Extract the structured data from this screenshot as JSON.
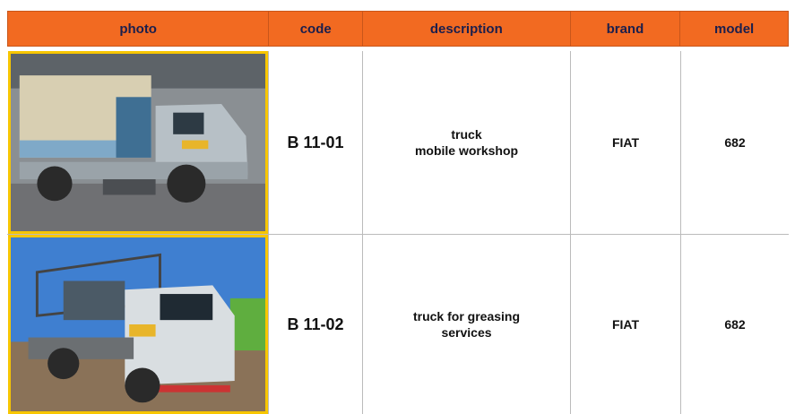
{
  "table": {
    "header": [
      "photo",
      "code",
      "description",
      "brand",
      "model"
    ],
    "rows": [
      {
        "code": "B 11-01",
        "description": [
          "truck",
          "mobile workshop"
        ],
        "brand": "FIAT",
        "model": "682"
      },
      {
        "code": "B 11-02",
        "description": [
          "truck for greasing",
          "services"
        ],
        "brand": "FIAT",
        "model": "682"
      }
    ]
  }
}
